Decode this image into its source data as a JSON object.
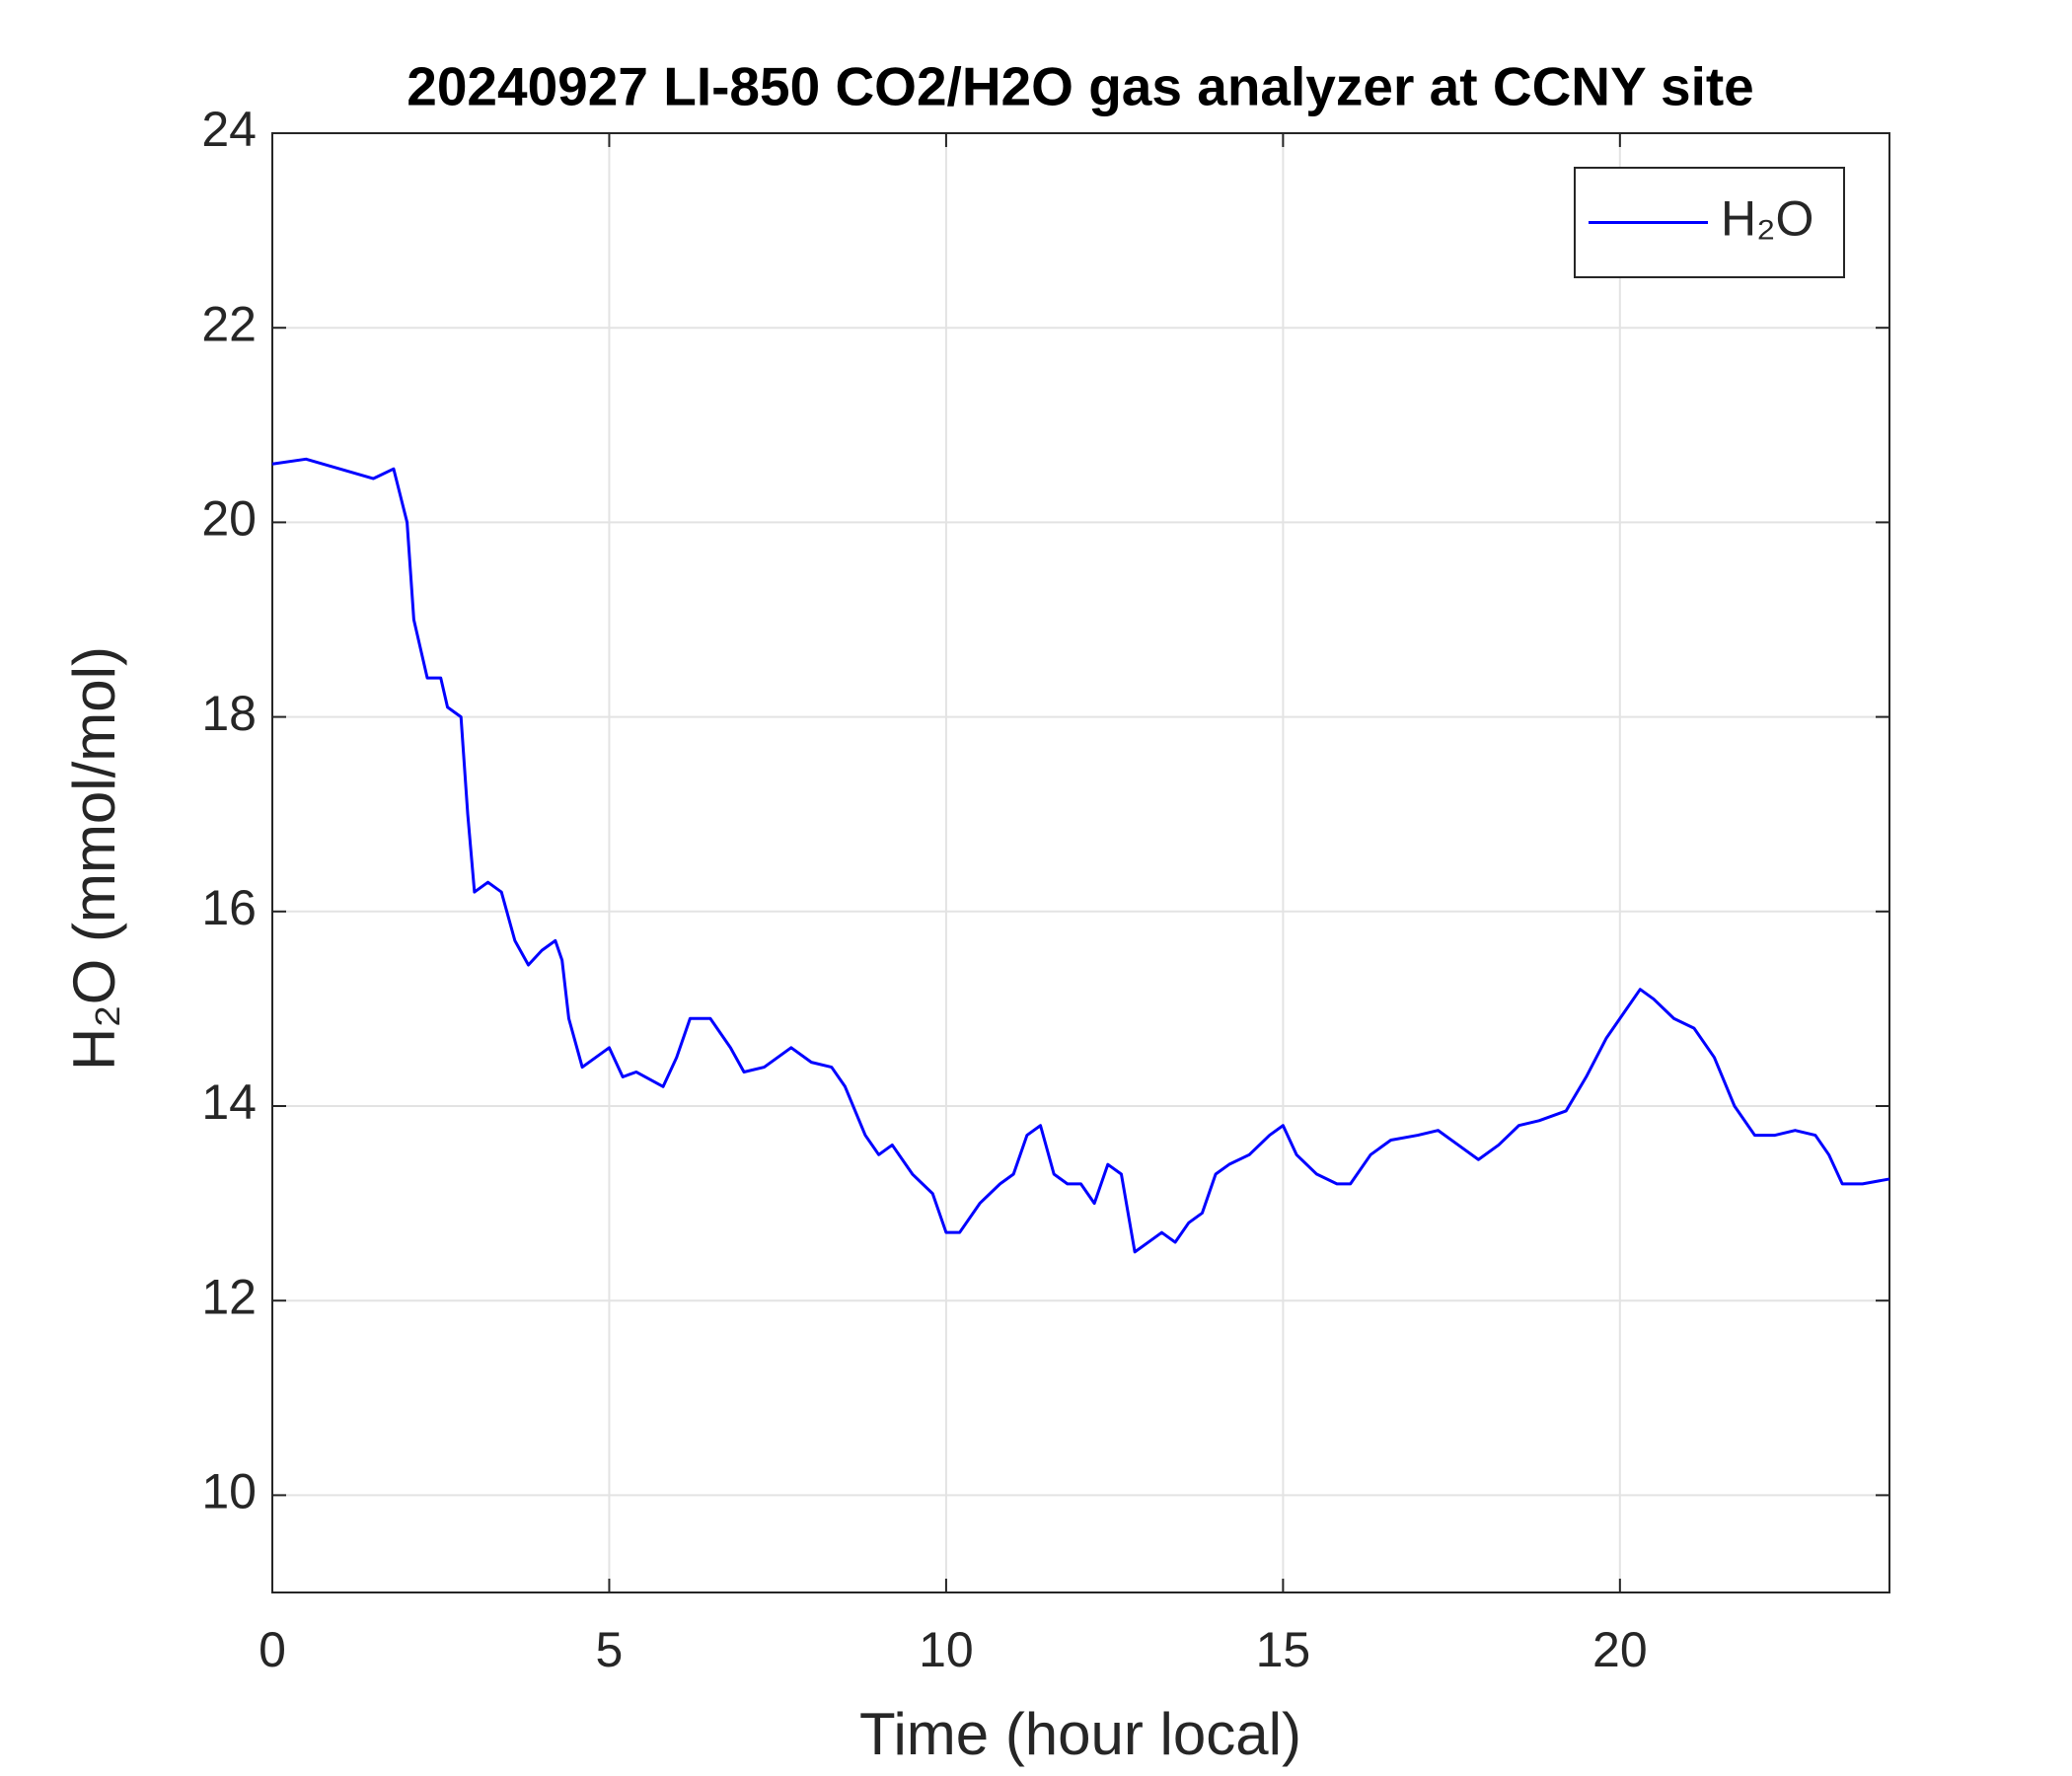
{
  "chart_data": {
    "type": "line",
    "title": "20240927 LI-850 CO2/H2O gas analyzer at CCNY site",
    "xlabel": "Time (hour local)",
    "ylabel": "H₂O (mmol/mol)",
    "xlim": [
      0,
      24
    ],
    "ylim": [
      9,
      24
    ],
    "xticks": [
      0,
      5,
      10,
      15,
      20
    ],
    "yticks": [
      10,
      12,
      14,
      16,
      18,
      20,
      22,
      24
    ],
    "grid": true,
    "legend": "upper right",
    "x": [
      0,
      0.5,
      1,
      1.5,
      1.8,
      2.0,
      2.1,
      2.3,
      2.5,
      2.6,
      2.8,
      2.9,
      3.0,
      3.2,
      3.4,
      3.6,
      3.8,
      4.0,
      4.2,
      4.3,
      4.4,
      4.6,
      4.8,
      5.0,
      5.2,
      5.4,
      5.8,
      6.0,
      6.2,
      6.5,
      6.8,
      7.0,
      7.3,
      7.7,
      8.0,
      8.3,
      8.5,
      8.8,
      9.0,
      9.2,
      9.5,
      9.8,
      10.0,
      10.2,
      10.5,
      10.8,
      11.0,
      11.2,
      11.4,
      11.6,
      11.8,
      12.0,
      12.2,
      12.4,
      12.6,
      12.8,
      13.0,
      13.2,
      13.4,
      13.6,
      13.8,
      14.0,
      14.2,
      14.5,
      14.8,
      15.0,
      15.2,
      15.5,
      15.8,
      16.0,
      16.3,
      16.6,
      17.0,
      17.3,
      17.6,
      17.9,
      18.2,
      18.5,
      18.8,
      19.2,
      19.5,
      19.8,
      20.1,
      20.3,
      20.5,
      20.8,
      21.1,
      21.4,
      21.7,
      22.0,
      22.3,
      22.6,
      22.9,
      23.1,
      23.3,
      23.6,
      24.0
    ],
    "series": [
      {
        "name": "H₂O",
        "color": "#0000ff",
        "values": [
          20.6,
          20.65,
          20.55,
          20.45,
          20.55,
          20.0,
          19.0,
          18.4,
          18.4,
          18.1,
          18.0,
          17.0,
          16.2,
          16.3,
          16.2,
          15.7,
          15.45,
          15.6,
          15.7,
          15.5,
          14.9,
          14.4,
          14.5,
          14.6,
          14.3,
          14.35,
          14.2,
          14.5,
          14.9,
          14.9,
          14.6,
          14.35,
          14.4,
          14.6,
          14.45,
          14.4,
          14.2,
          13.7,
          13.5,
          13.6,
          13.3,
          13.1,
          12.7,
          12.7,
          13.0,
          13.2,
          13.3,
          13.7,
          13.8,
          13.3,
          13.2,
          13.2,
          13.0,
          13.4,
          13.3,
          12.5,
          12.6,
          12.7,
          12.6,
          12.8,
          12.9,
          13.3,
          13.4,
          13.5,
          13.7,
          13.8,
          13.5,
          13.3,
          13.2,
          13.2,
          13.5,
          13.65,
          13.7,
          13.75,
          13.6,
          13.45,
          13.6,
          13.8,
          13.85,
          13.95,
          14.3,
          14.7,
          15.0,
          15.2,
          15.1,
          14.9,
          14.8,
          14.5,
          14.0,
          13.7,
          13.7,
          13.75,
          13.7,
          13.5,
          13.2,
          13.2,
          13.25
        ]
      }
    ]
  }
}
